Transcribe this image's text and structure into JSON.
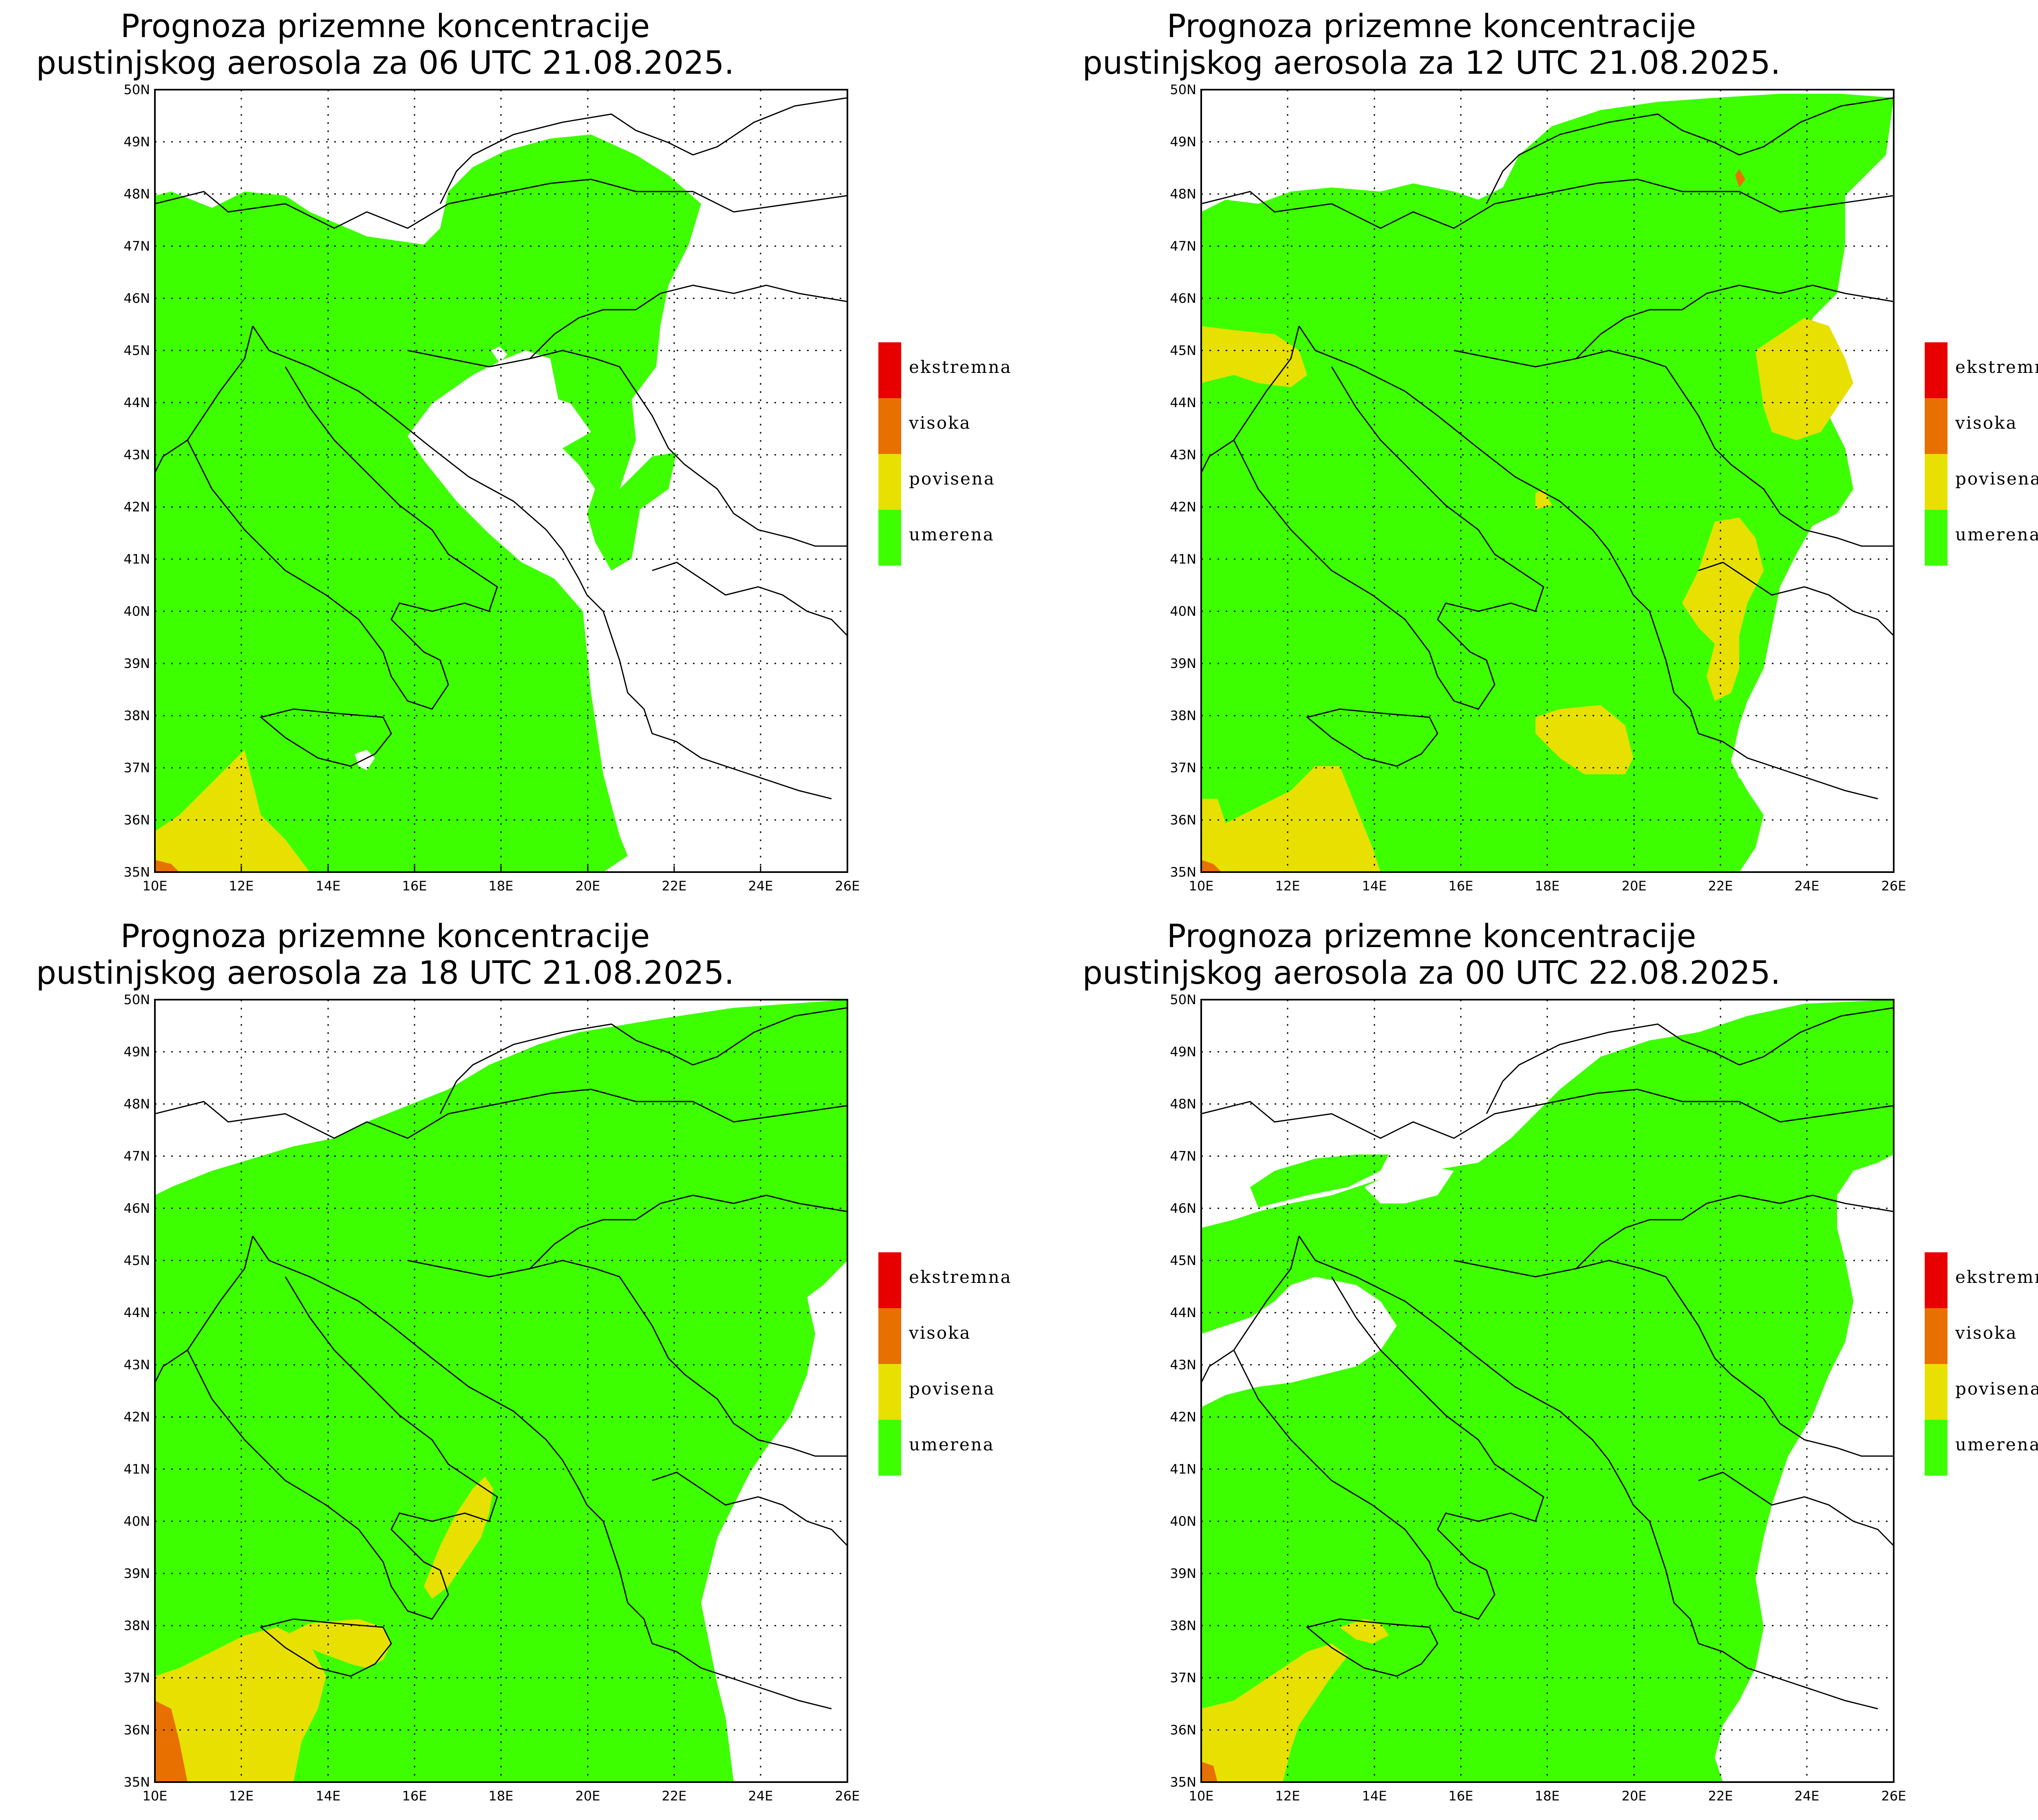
{
  "panels": [
    {
      "title_line1": "Prognoza prizemne koncentracije",
      "title_line2": "pustinjskog aerosola za 06 UTC 21.08.2025."
    },
    {
      "title_line1": "Prognoza prizemne koncentracije",
      "title_line2": "pustinjskog aerosola za 12 UTC 21.08.2025."
    },
    {
      "title_line1": "Prognoza prizemne koncentracije",
      "title_line2": "pustinjskog aerosola za 18 UTC 21.08.2025."
    },
    {
      "title_line1": "Prognoza prizemne koncentracije",
      "title_line2": "pustinjskog aerosola za 00 UTC 22.08.2025."
    }
  ],
  "legend": [
    {
      "label": "ekstremna",
      "color": "#e80000"
    },
    {
      "label": "visoka",
      "color": "#e87000"
    },
    {
      "label": "povisena",
      "color": "#e8e000"
    },
    {
      "label": "umerena",
      "color": "#3dff00"
    }
  ],
  "axes": {
    "lon_labels": [
      "10E",
      "12E",
      "14E",
      "16E",
      "18E",
      "20E",
      "22E",
      "24E",
      "26E"
    ],
    "lat_labels": [
      "35N",
      "36N",
      "37N",
      "38N",
      "39N",
      "40N",
      "41N",
      "42N",
      "43N",
      "44N",
      "45N",
      "46N",
      "47N",
      "48N",
      "49N",
      "50N"
    ],
    "lon_range": [
      10,
      26
    ],
    "lat_range": [
      35,
      50
    ]
  },
  "colors": {
    "background": "#ffffff",
    "frame": "#000000",
    "grid": "#000000"
  }
}
